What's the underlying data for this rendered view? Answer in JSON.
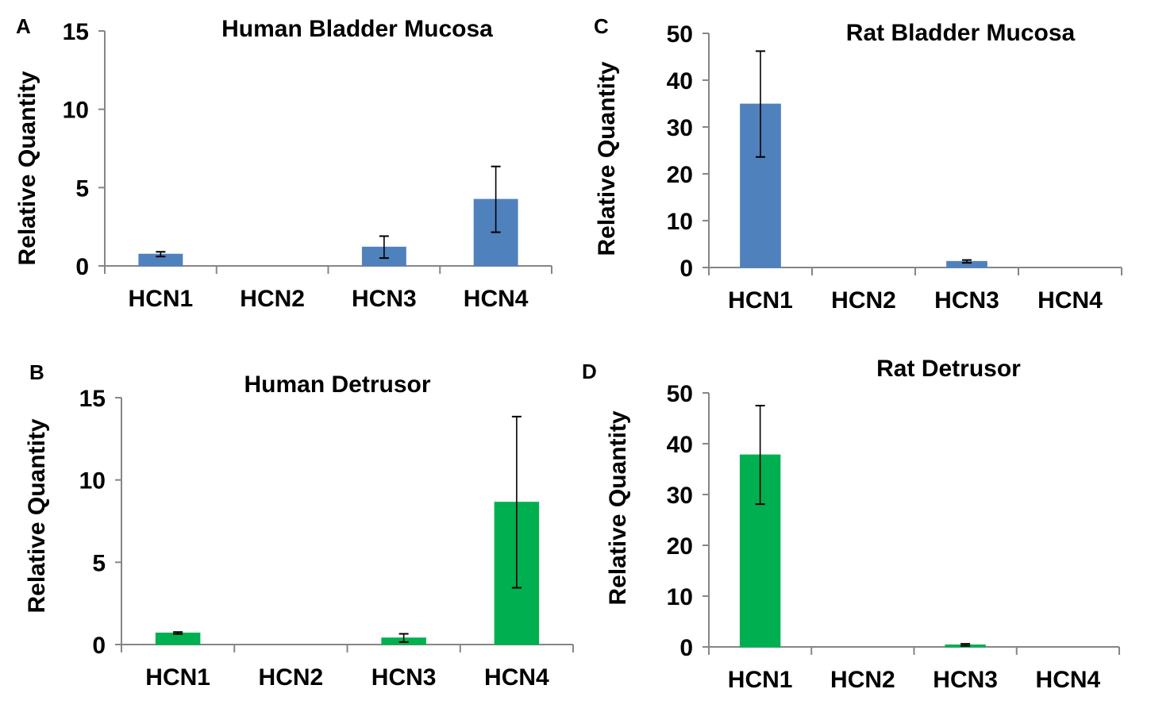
{
  "colors": {
    "mucosa": "#4F81BD",
    "detrusor": "#00B050",
    "axis": "#868686",
    "error": "#000000"
  },
  "chart_data": [
    {
      "panel": "A",
      "type": "bar",
      "title": "Human Bladder Mucosa",
      "ylabel": "Relative Quantity",
      "xlabel": "",
      "categories": [
        "HCN1",
        "HCN2",
        "HCN3",
        "HCN4"
      ],
      "values": [
        0.75,
        0,
        1.2,
        4.25
      ],
      "errors": [
        0.15,
        0,
        0.7,
        2.1
      ],
      "ylim": [
        0,
        15
      ],
      "yticks": [
        0,
        5,
        10,
        15
      ],
      "color_key": "mucosa",
      "grid": false
    },
    {
      "panel": "B",
      "type": "bar",
      "title": "Human Detrusor",
      "ylabel": "Relative Quantity",
      "xlabel": "",
      "categories": [
        "HCN1",
        "HCN2",
        "HCN3",
        "HCN4"
      ],
      "values": [
        0.7,
        0,
        0.4,
        8.65
      ],
      "errors": [
        0.06,
        0,
        0.25,
        5.2
      ],
      "ylim": [
        0,
        15
      ],
      "yticks": [
        0,
        5,
        10,
        15
      ],
      "color_key": "detrusor",
      "grid": false
    },
    {
      "panel": "C",
      "type": "bar",
      "title": "Rat Bladder Mucosa",
      "ylabel": "Relative Quantity",
      "xlabel": "",
      "categories": [
        "HCN1",
        "HCN2",
        "HCN3",
        "HCN4"
      ],
      "values": [
        34.9,
        0,
        1.3,
        0
      ],
      "errors": [
        11.3,
        0,
        0.3,
        0
      ],
      "ylim": [
        0,
        50
      ],
      "yticks": [
        0,
        10,
        20,
        30,
        40,
        50
      ],
      "color_key": "mucosa",
      "grid": false
    },
    {
      "panel": "D",
      "type": "bar",
      "title": "Rat Detrusor",
      "ylabel": "Relative Quantity",
      "xlabel": "",
      "categories": [
        "HCN1",
        "HCN2",
        "HCN3",
        "HCN4"
      ],
      "values": [
        37.8,
        0,
        0.4,
        0
      ],
      "errors": [
        9.7,
        0,
        0.2,
        0
      ],
      "ylim": [
        0,
        50
      ],
      "yticks": [
        0,
        10,
        20,
        30,
        40,
        50
      ],
      "color_key": "detrusor",
      "grid": false
    }
  ]
}
